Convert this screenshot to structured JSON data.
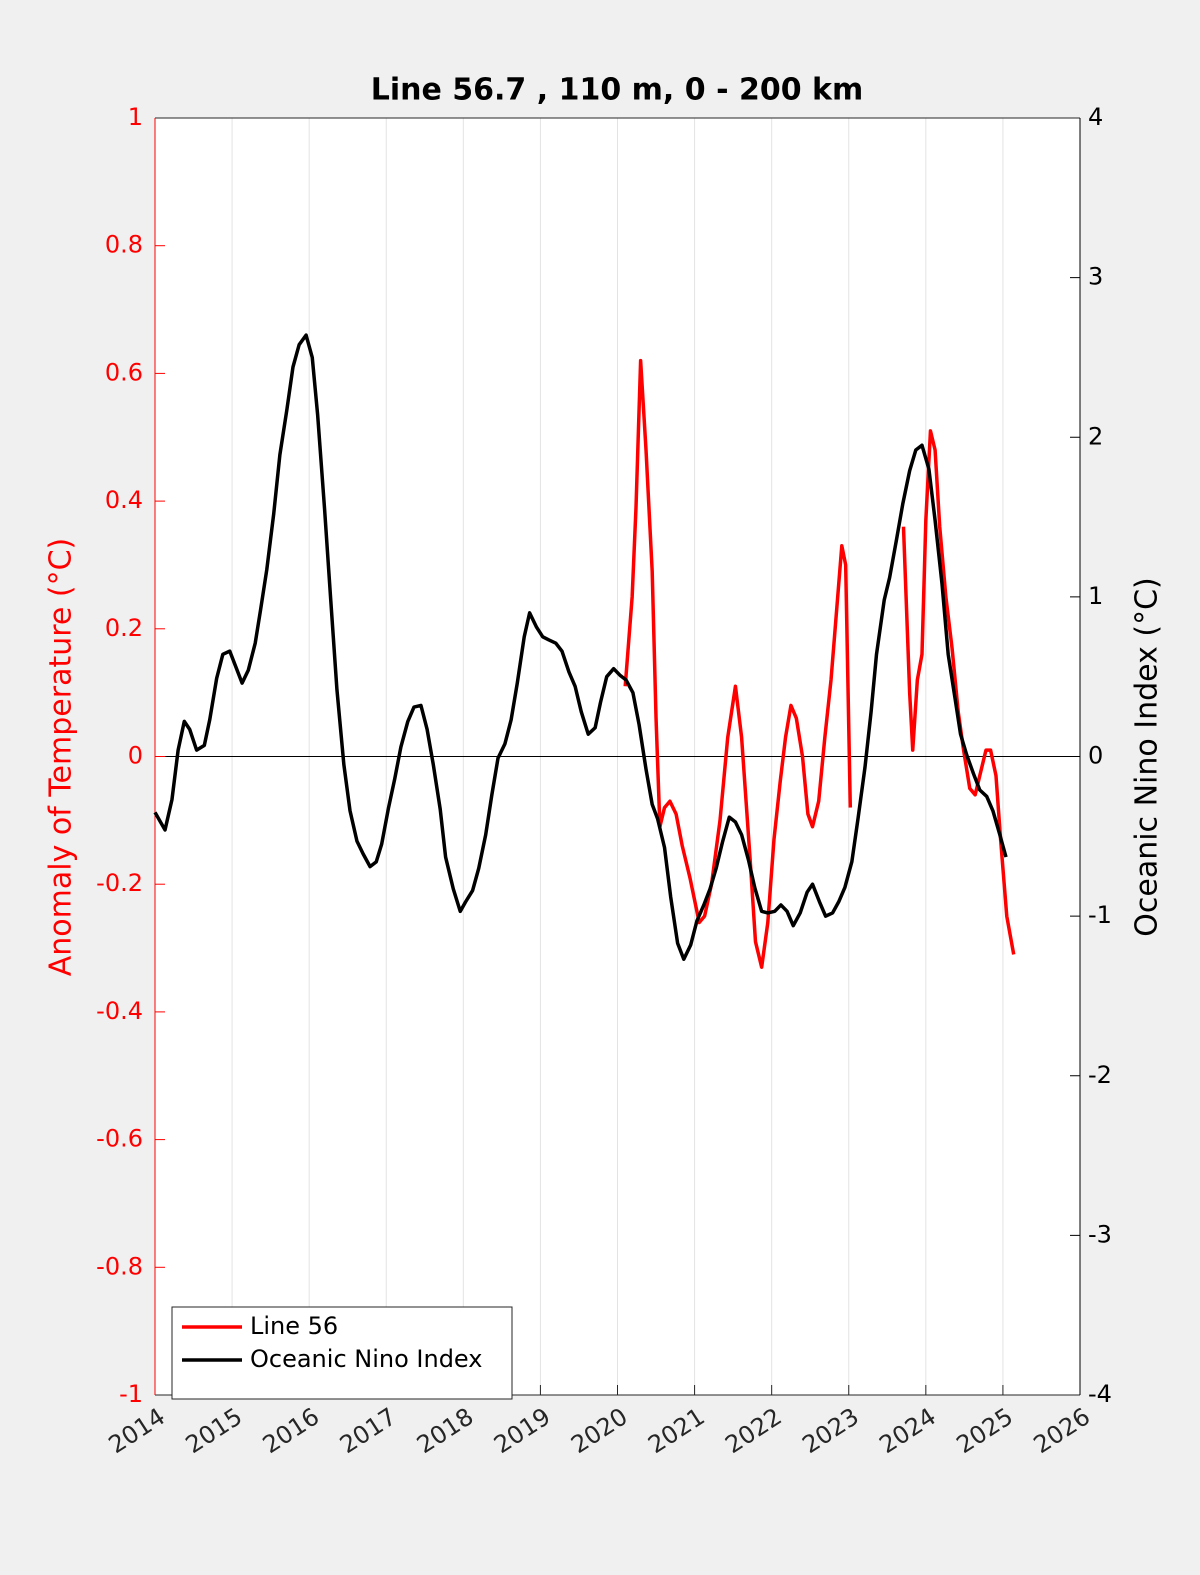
{
  "chart_data": {
    "type": "line",
    "title": "Line 56.7 , 110 m, 0 - 200 km",
    "y_label": "Anomaly of Temperature (°C)",
    "y2_label": "Oceanic Nino Index (°C)",
    "y_axis_color": "#ff0000",
    "y2_axis_color": "#000000",
    "xlim": [
      2014,
      2026
    ],
    "xticks": [
      2014,
      2015,
      2016,
      2017,
      2018,
      2019,
      2020,
      2021,
      2022,
      2023,
      2024,
      2025,
      2026
    ],
    "ylim": [
      -1,
      1
    ],
    "yticks": [
      -1,
      -0.8,
      -0.6,
      -0.4,
      -0.2,
      0,
      0.2,
      0.4,
      0.6,
      0.8,
      1
    ],
    "y2lim": [
      -4,
      4
    ],
    "y2ticks": [
      -4,
      -3,
      -2,
      -1,
      0,
      1,
      2,
      3,
      4
    ],
    "grid": "x",
    "legend": "lower left",
    "series": [
      {
        "name": "Line 56",
        "color": "#ff0000",
        "axis": "y",
        "x": [
          2020.1,
          2020.19,
          2020.24,
          2020.3,
          2020.37,
          2020.45,
          2020.5,
          2020.55,
          2020.61,
          2020.68,
          2020.76,
          2020.84,
          2020.94,
          2021.06,
          2021.13,
          2021.22,
          2021.33,
          2021.43,
          2021.53,
          2021.61,
          2021.72,
          2021.79,
          2021.87,
          2021.95,
          2022.03,
          2022.11,
          2022.18,
          2022.25,
          2022.32,
          2022.4,
          2022.47,
          2022.53,
          2022.61,
          2022.69,
          2022.77,
          2022.83,
          2022.91,
          2022.96,
          2023.02,
          2023.4,
          2023.71,
          2023.79,
          2023.83,
          2023.89,
          2023.95,
          2024.0,
          2024.06,
          2024.12,
          2024.18,
          2024.26,
          2024.34,
          2024.42,
          2024.49,
          2024.57,
          2024.64,
          2024.7,
          2024.78,
          2024.84,
          2024.91,
          2024.97,
          2025.05,
          2025.14
        ],
        "values": [
          0.11,
          0.25,
          0.39,
          0.62,
          0.48,
          0.29,
          0.06,
          -0.11,
          -0.08,
          -0.07,
          -0.09,
          -0.14,
          -0.19,
          -0.26,
          -0.25,
          -0.2,
          -0.1,
          0.03,
          0.11,
          0.03,
          -0.16,
          -0.29,
          -0.33,
          -0.26,
          -0.13,
          -0.04,
          0.03,
          0.08,
          0.06,
          0,
          -0.09,
          -0.11,
          -0.07,
          0.03,
          0.12,
          0.21,
          0.33,
          0.3,
          -0.08,
          null,
          0.36,
          0.1,
          0.01,
          0.12,
          0.16,
          0.37,
          0.51,
          0.48,
          0.36,
          0.25,
          0.17,
          0.07,
          0.01,
          -0.05,
          -0.06,
          -0.03,
          0.01,
          0.01,
          -0.03,
          -0.13,
          -0.25,
          -0.31
        ]
      },
      {
        "name": "Oceanic Nino Index",
        "color": "#000000",
        "axis": "y2",
        "x": [
          2014.0,
          2014.13,
          2014.22,
          2014.3,
          2014.38,
          2014.45,
          2014.54,
          2014.64,
          2014.71,
          2014.8,
          2014.88,
          2014.97,
          2015.05,
          2015.13,
          2015.21,
          2015.3,
          2015.37,
          2015.45,
          2015.54,
          2015.62,
          2015.71,
          2015.79,
          2015.87,
          2015.96,
          2016.04,
          2016.11,
          2016.2,
          2016.28,
          2016.36,
          2016.45,
          2016.53,
          2016.62,
          2016.7,
          2016.79,
          2016.87,
          2016.94,
          2017.03,
          2017.11,
          2017.19,
          2017.28,
          2017.36,
          2017.45,
          2017.53,
          2017.61,
          2017.7,
          2017.77,
          2017.87,
          2017.96,
          2018.03,
          2018.12,
          2018.2,
          2018.29,
          2018.37,
          2018.45,
          2018.54,
          2018.62,
          2018.7,
          2018.79,
          2018.86,
          2018.95,
          2019.03,
          2019.11,
          2019.2,
          2019.28,
          2019.37,
          2019.45,
          2019.53,
          2019.62,
          2019.71,
          2019.78,
          2019.86,
          2019.95,
          2020.03,
          2020.11,
          2020.2,
          2020.28,
          2020.37,
          2020.45,
          2020.52,
          2020.61,
          2020.69,
          2020.78,
          2020.86,
          2020.95,
          2021.03,
          2021.12,
          2021.2,
          2021.28,
          2021.36,
          2021.45,
          2021.53,
          2021.61,
          2021.7,
          2021.78,
          2021.87,
          2021.95,
          2022.04,
          2022.12,
          2022.2,
          2022.28,
          2022.37,
          2022.46,
          2022.53,
          2022.62,
          2022.7,
          2022.79,
          2022.87,
          2022.95,
          2023.04,
          2023.12,
          2023.21,
          2023.29,
          2023.36,
          2023.46,
          2023.53,
          2023.62,
          2023.7,
          2023.79,
          2023.87,
          2023.95,
          2024.04,
          2024.12,
          2024.21,
          2024.29,
          2024.38,
          2024.45,
          2024.53,
          2024.62,
          2024.7,
          2024.79,
          2024.87,
          2024.96,
          2025.04
        ],
        "values": [
          -0.35,
          -0.46,
          -0.27,
          0.04,
          0.22,
          0.17,
          0.04,
          0.07,
          0.23,
          0.49,
          0.64,
          0.66,
          0.56,
          0.46,
          0.54,
          0.71,
          0.92,
          1.17,
          1.52,
          1.89,
          2.17,
          2.44,
          2.58,
          2.64,
          2.5,
          2.14,
          1.55,
          0.98,
          0.42,
          -0.05,
          -0.34,
          -0.53,
          -0.61,
          -0.69,
          -0.66,
          -0.55,
          -0.32,
          -0.14,
          0.06,
          0.22,
          0.31,
          0.32,
          0.17,
          -0.05,
          -0.33,
          -0.63,
          -0.83,
          -0.97,
          -0.91,
          -0.84,
          -0.7,
          -0.49,
          -0.24,
          -0.01,
          0.08,
          0.23,
          0.46,
          0.75,
          0.9,
          0.81,
          0.75,
          0.73,
          0.71,
          0.66,
          0.53,
          0.44,
          0.28,
          0.14,
          0.18,
          0.34,
          0.5,
          0.55,
          0.51,
          0.48,
          0.4,
          0.2,
          -0.08,
          -0.3,
          -0.39,
          -0.57,
          -0.88,
          -1.17,
          -1.27,
          -1.18,
          -1.03,
          -0.93,
          -0.83,
          -0.7,
          -0.54,
          -0.38,
          -0.41,
          -0.49,
          -0.65,
          -0.82,
          -0.97,
          -0.98,
          -0.97,
          -0.93,
          -0.97,
          -1.06,
          -0.98,
          -0.85,
          -0.8,
          -0.91,
          -1,
          -0.98,
          -0.91,
          -0.82,
          -0.66,
          -0.39,
          -0.07,
          0.28,
          0.64,
          0.98,
          1.12,
          1.36,
          1.58,
          1.79,
          1.92,
          1.95,
          1.8,
          1.48,
          1.08,
          0.64,
          0.36,
          0.14,
          0.01,
          -0.11,
          -0.21,
          -0.25,
          -0.34,
          -0.49,
          -0.63
        ]
      }
    ]
  }
}
